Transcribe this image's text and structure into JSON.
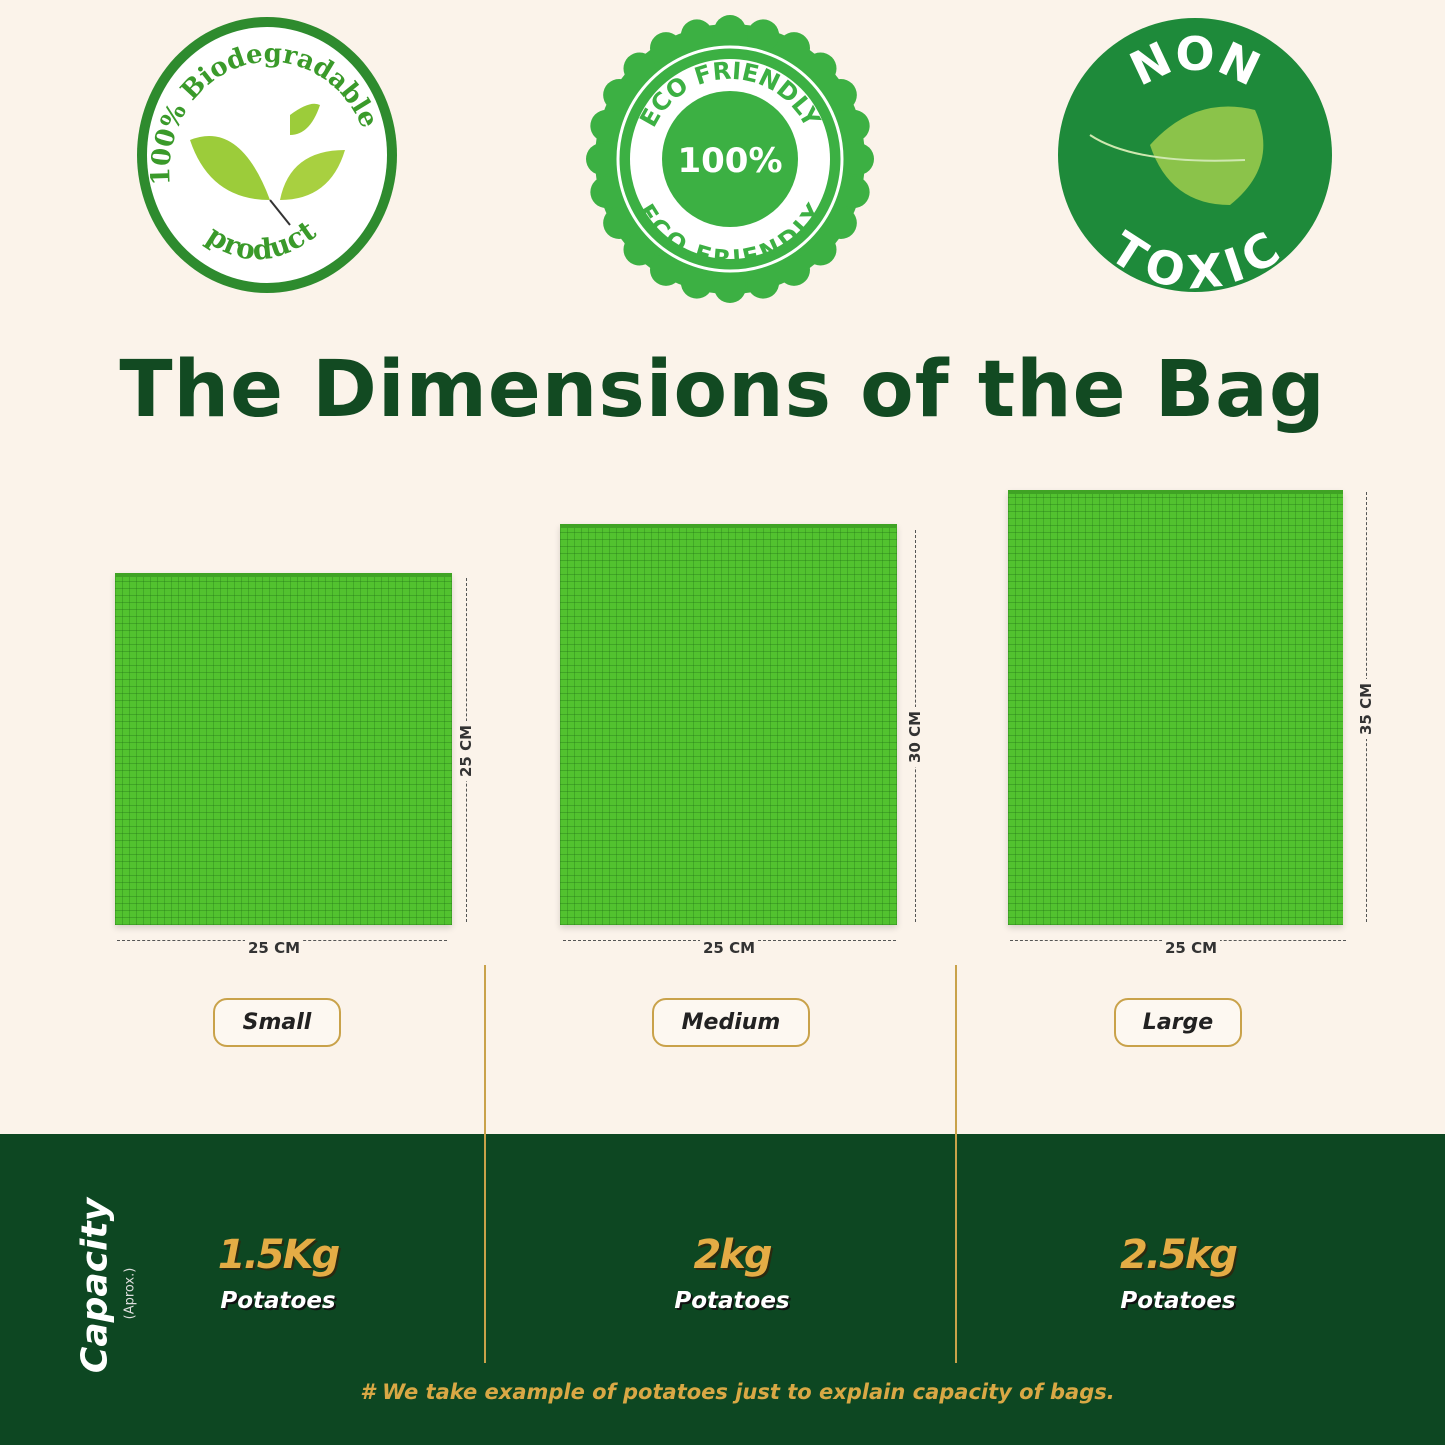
{
  "badges": [
    {
      "top": "100% Biodegradable",
      "bottom": "product"
    },
    {
      "top": "ECO FRIENDLY",
      "center": "100%",
      "bottom": "ECO FRIENDLY"
    },
    {
      "top": "NON",
      "bottom": "TOXIC"
    }
  ],
  "title": "The Dimensions of the Bag",
  "colors": {
    "background": "#fbf3ea",
    "title": "#124a22",
    "bag": "#52c22f",
    "band": "#0d4722",
    "gold": "#c9a24a",
    "value": "#e4ac45"
  },
  "bags": [
    {
      "size": "Small",
      "width": "25 CM",
      "height": "25 CM",
      "capacity": "1.5Kg",
      "item": "Potatoes"
    },
    {
      "size": "Medium",
      "width": "25 CM",
      "height": "30 CM",
      "capacity": "2kg",
      "item": "Potatoes"
    },
    {
      "size": "Large",
      "width": "25 CM",
      "height": "35 CM",
      "capacity": "2.5kg",
      "item": "Potatoes"
    }
  ],
  "capacity": {
    "label": "Capacity",
    "sub": "(Aprox.)"
  },
  "footnote": "# We take example of potatoes just to explain capacity of bags."
}
